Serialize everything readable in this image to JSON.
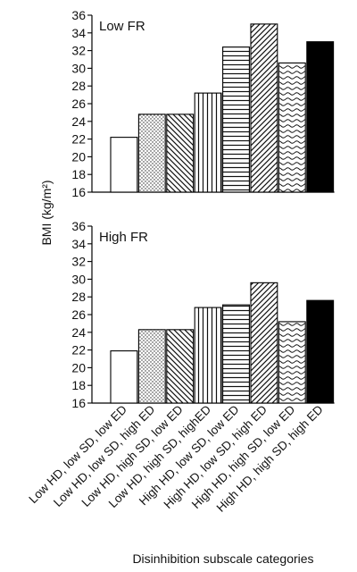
{
  "chart_data": [
    {
      "type": "bar",
      "title": "Low FR",
      "categories": [
        "Low HD, low SD, low ED",
        "Low HD, low SD, high ED",
        "Low HD, high SD, low ED",
        "Low HD, high SD, highED",
        "High HD, low SD, low ED",
        "High HD, low SD, high ED",
        "High HD, high SD, low ED",
        "High HD, high SD, high ED"
      ],
      "values": [
        22.2,
        24.8,
        24.8,
        27.2,
        32.4,
        35.0,
        30.6,
        33.0
      ],
      "ylim": [
        16,
        36
      ],
      "yticks": [
        "16",
        "18",
        "20",
        "22",
        "24",
        "26",
        "28",
        "30",
        "32",
        "34",
        "36"
      ],
      "patterns": [
        "white",
        "dots",
        "diag-back",
        "vertical",
        "horizontal",
        "diag-fwd",
        "wavy",
        "black"
      ]
    },
    {
      "type": "bar",
      "title": "High FR",
      "categories": [
        "Low HD, low SD, low ED",
        "Low HD, low SD, high ED",
        "Low HD, high SD, low ED",
        "Low HD, high SD, highED",
        "High HD, low SD, low ED",
        "High HD, low SD, high ED",
        "High HD, high SD, low ED",
        "High HD, high SD, high ED"
      ],
      "values": [
        21.9,
        24.3,
        24.3,
        26.8,
        27.1,
        29.6,
        25.2,
        27.6
      ],
      "ylim": [
        16,
        36
      ],
      "yticks": [
        "16",
        "18",
        "20",
        "22",
        "24",
        "26",
        "28",
        "30",
        "32",
        "34",
        "36"
      ],
      "patterns": [
        "white",
        "dots",
        "diag-back",
        "vertical",
        "horizontal",
        "diag-fwd",
        "wavy",
        "black"
      ]
    }
  ],
  "axis": {
    "ylabel": "BMI (kg/m²)",
    "xlabel": "Disinhibition subscale categories",
    "categories": [
      "Low HD, low SD, low ED",
      "Low HD, low SD, high ED",
      "Low HD, high SD, low ED",
      "Low HD, high SD, highED",
      "High HD, low SD, low ED",
      "High HD, low SD, high ED",
      "High HD, high SD, low ED",
      "High HD, high SD, high ED"
    ]
  }
}
